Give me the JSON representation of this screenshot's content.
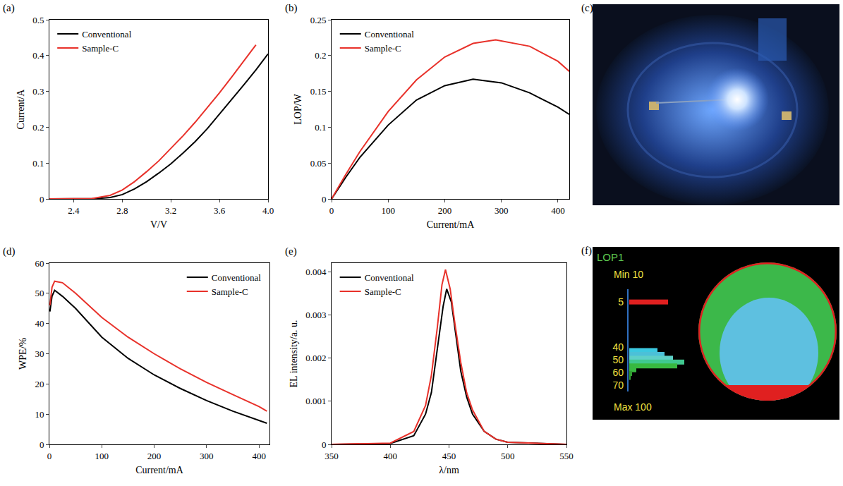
{
  "chart_data": [
    {
      "label": "(a)",
      "type": "line",
      "x_label": "V/V",
      "y_label": "Current/A",
      "xlim": [
        2.2,
        4.0
      ],
      "xticks": [
        2.4,
        2.8,
        3.2,
        3.6,
        {
          "value": 4,
          "label": "4.0"
        }
      ],
      "ylim": [
        0,
        0.5
      ],
      "yticks": [
        0,
        0.1,
        0.2,
        0.3,
        0.4,
        0.5
      ],
      "legend": "top left",
      "series": [
        {
          "name": "Conventional",
          "color": "#000000",
          "x": [
            2.2,
            2.4,
            2.6,
            2.7,
            2.8,
            2.9,
            3.0,
            3.1,
            3.2,
            3.3,
            3.4,
            3.5,
            3.6,
            3.7,
            3.8,
            3.9,
            4.0
          ],
          "values": [
            0,
            0,
            0.001,
            0.004,
            0.012,
            0.028,
            0.048,
            0.072,
            0.098,
            0.128,
            0.16,
            0.196,
            0.236,
            0.276,
            0.318,
            0.36,
            0.405
          ]
        },
        {
          "name": "Sample-C",
          "color": "#e8312a",
          "x": [
            2.2,
            2.4,
            2.55,
            2.7,
            2.8,
            2.9,
            3.0,
            3.1,
            3.2,
            3.3,
            3.4,
            3.5,
            3.6,
            3.7,
            3.8,
            3.9
          ],
          "values": [
            0,
            0,
            0.001,
            0.01,
            0.025,
            0.048,
            0.076,
            0.106,
            0.14,
            0.176,
            0.214,
            0.254,
            0.296,
            0.34,
            0.385,
            0.43
          ]
        }
      ]
    },
    {
      "label": "(b)",
      "type": "line",
      "x_label": "Current/mA",
      "y_label": "LOP/W",
      "xlim": [
        0,
        420
      ],
      "xticks": [
        0,
        100,
        200,
        300,
        400
      ],
      "ylim": [
        0,
        0.25
      ],
      "yticks": [
        0,
        0.05,
        0.1,
        0.15,
        0.2,
        0.25
      ],
      "legend": "top left",
      "series": [
        {
          "name": "Conventional",
          "color": "#000000",
          "x": [
            0,
            25,
            50,
            100,
            150,
            200,
            250,
            300,
            350,
            400,
            420
          ],
          "values": [
            0,
            0.03,
            0.058,
            0.103,
            0.138,
            0.158,
            0.167,
            0.162,
            0.148,
            0.128,
            0.118
          ]
        },
        {
          "name": "Sample-C",
          "color": "#e8312a",
          "x": [
            0,
            25,
            50,
            100,
            150,
            200,
            250,
            290,
            350,
            400,
            420
          ],
          "values": [
            0,
            0.034,
            0.066,
            0.122,
            0.166,
            0.198,
            0.217,
            0.222,
            0.213,
            0.192,
            0.178
          ]
        }
      ]
    },
    {
      "label": "(d)",
      "type": "line",
      "x_label": "Current/mA",
      "y_label": "WPE/%",
      "xlim": [
        0,
        420
      ],
      "xticks": [
        0,
        100,
        200,
        300,
        400
      ],
      "ylim": [
        0,
        60
      ],
      "yticks": [
        0,
        10,
        20,
        30,
        40,
        50,
        60
      ],
      "legend": "top right",
      "series": [
        {
          "name": "Conventional",
          "color": "#000000",
          "x": [
            1,
            5,
            10,
            25,
            50,
            100,
            150,
            200,
            250,
            300,
            350,
            400,
            415
          ],
          "values": [
            44,
            49,
            51,
            49,
            45,
            35.5,
            28.5,
            23,
            18.5,
            14.5,
            11,
            8,
            7
          ]
        },
        {
          "name": "Sample-C",
          "color": "#e8312a",
          "x": [
            1,
            5,
            10,
            25,
            50,
            100,
            150,
            200,
            250,
            300,
            350,
            400,
            415
          ],
          "values": [
            46,
            52,
            54,
            53.5,
            50,
            42,
            35.5,
            30,
            25,
            20.5,
            16.5,
            12.5,
            11
          ]
        }
      ]
    },
    {
      "label": "(e)",
      "type": "line",
      "x_label": "λ/nm",
      "y_label": "EL intensity/a. u.",
      "xlim": [
        350,
        550
      ],
      "xticks": [
        350,
        400,
        450,
        500,
        550
      ],
      "ylim": [
        0,
        0.0042
      ],
      "yticks": [
        0,
        0.001,
        0.002,
        0.003,
        0.004
      ],
      "legend": "top left",
      "series": [
        {
          "name": "Conventional",
          "color": "#000000",
          "x": [
            350,
            400,
            420,
            430,
            435,
            440,
            445,
            448,
            452,
            456,
            460,
            465,
            470,
            480,
            490,
            500,
            550
          ],
          "values": [
            0,
            2e-05,
            0.0002,
            0.0007,
            0.0012,
            0.0022,
            0.0032,
            0.0036,
            0.0033,
            0.0025,
            0.0017,
            0.0011,
            0.0007,
            0.0003,
            0.00012,
            5e-05,
            0
          ]
        },
        {
          "name": "Sample-C",
          "color": "#e8312a",
          "x": [
            350,
            400,
            420,
            430,
            435,
            440,
            444,
            447,
            451,
            455,
            460,
            465,
            470,
            480,
            490,
            500,
            550
          ],
          "values": [
            0,
            3e-05,
            0.0003,
            0.0009,
            0.0016,
            0.0027,
            0.0037,
            0.00405,
            0.0036,
            0.0028,
            0.0019,
            0.0012,
            0.0008,
            0.0003,
            0.00012,
            5e-05,
            0
          ]
        }
      ]
    }
  ],
  "photo": {
    "label": "(c)"
  },
  "wafer_map": {
    "label": "(f)",
    "title": "LOP1",
    "min_label": "Min 10",
    "max_label": "Max 100",
    "histogram": {
      "ylim": [
        -5,
        75
      ],
      "yticks": [
        5,
        40,
        50,
        60,
        70
      ],
      "bin_centers": [
        5,
        43,
        46,
        49,
        52,
        55,
        58,
        61,
        64
      ],
      "counts": [
        55,
        40,
        50,
        62,
        78,
        68,
        10,
        4,
        2
      ],
      "colors": [
        "#e02020",
        "#3cc8e0",
        "#4cc0d8",
        "#5ed0c8",
        "#40c890",
        "#38b840",
        "#38b840",
        "#30a030",
        "#30a030"
      ]
    }
  }
}
